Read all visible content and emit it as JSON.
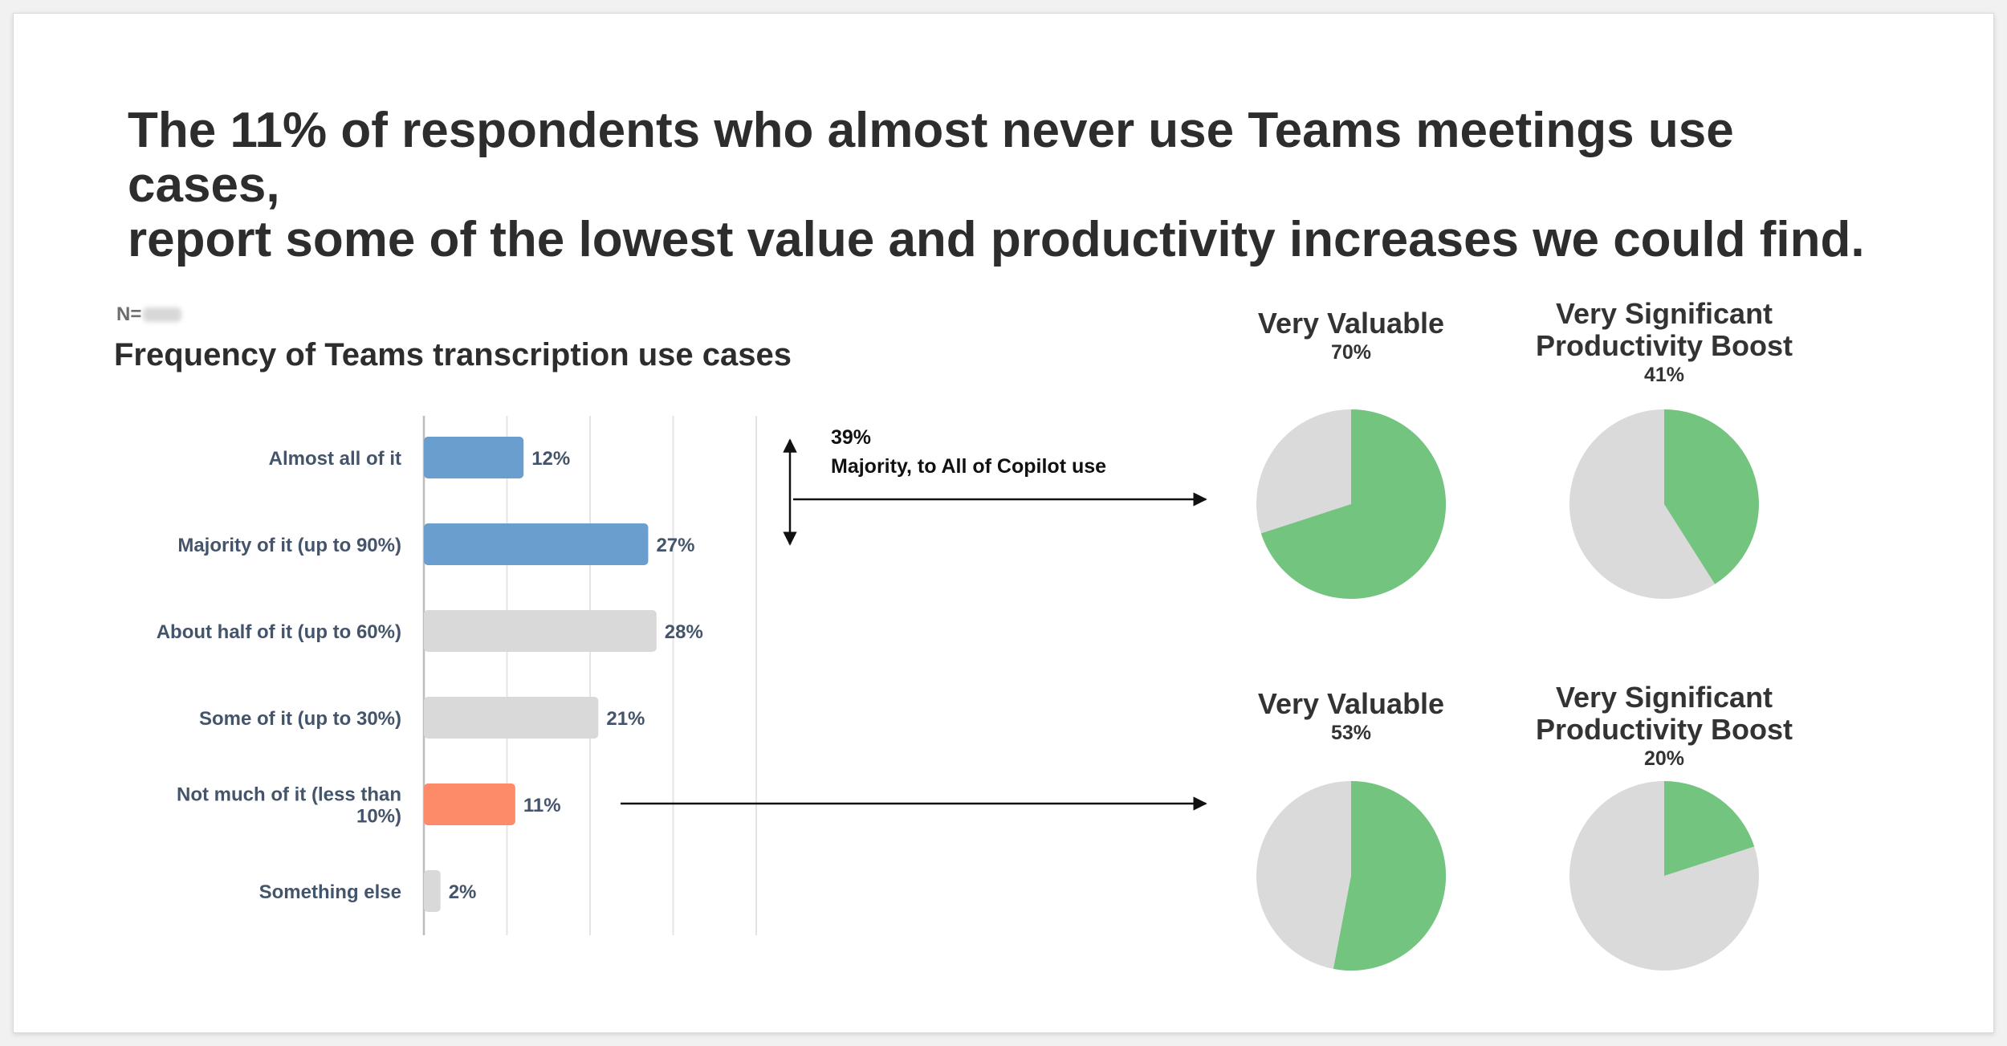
{
  "headline": {
    "line1": "The 11% of respondents who almost never use Teams meetings use cases,",
    "line2": "report some of the lowest value and productivity increases we could find."
  },
  "sample_label": "N=",
  "colors": {
    "blue": "#6a9ecf",
    "orange": "#fd8a68",
    "gray_bar": "#d9d9d9",
    "green": "#73c47f",
    "pie_gray": "#dadada"
  },
  "chart_data": [
    {
      "type": "bar",
      "orientation": "horizontal",
      "title": "Frequency of Teams transcription use cases",
      "categories": [
        [
          "Almost all of it"
        ],
        [
          "Majority of it (up to 90%)"
        ],
        [
          "About half of it (up to 60%)"
        ],
        [
          "Some of it (up to 30%)"
        ],
        [
          "Not much of it (less than",
          "10%)"
        ],
        [
          "Something else"
        ]
      ],
      "values": [
        12,
        27,
        28,
        21,
        11,
        2
      ],
      "value_labels": [
        "12%",
        "27%",
        "28%",
        "21%",
        "11%",
        "2%"
      ],
      "bar_colors": [
        "blue",
        "blue",
        "gray",
        "gray",
        "orange",
        "gray"
      ],
      "xlim": [
        0,
        50
      ],
      "gridlines": [
        10,
        20,
        30,
        40
      ],
      "annotation": {
        "value": "39%",
        "text": "Majority, to All of Copilot use"
      }
    },
    {
      "type": "pie",
      "group": "Majority, to All of Copilot use",
      "pies": [
        {
          "title": [
            "Very Valuable"
          ],
          "value": 70,
          "label": "70%"
        },
        {
          "title": [
            "Very Significant",
            "Productivity Boost"
          ],
          "value": 41,
          "label": "41%"
        }
      ]
    },
    {
      "type": "pie",
      "group": "Not much of it (less than 10%)",
      "pies": [
        {
          "title": [
            "Very Valuable"
          ],
          "value": 53,
          "label": "53%"
        },
        {
          "title": [
            "Very Significant",
            "Productivity Boost"
          ],
          "value": 20,
          "label": "20%"
        }
      ]
    }
  ]
}
